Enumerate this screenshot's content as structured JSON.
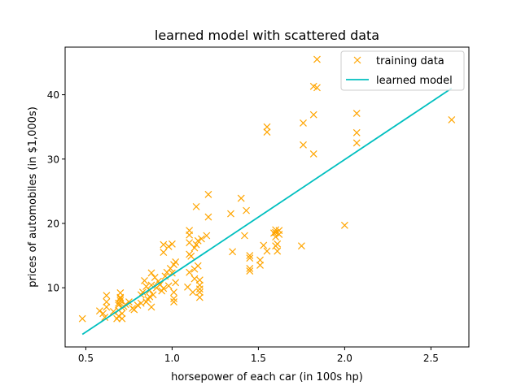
{
  "chart_data": {
    "type": "scatter",
    "title": "learned model with scattered data",
    "xlabel": "horsepower of each car (in 100s hp)",
    "ylabel": "prices of automobiles (in $1,000s)",
    "xlim": [
      0.38,
      2.72
    ],
    "ylim": [
      0.8,
      47.4
    ],
    "xticks": [
      0.5,
      1.0,
      1.5,
      2.0,
      2.5
    ],
    "xtick_labels": [
      "0.5",
      "1.0",
      "1.5",
      "2.0",
      "2.5"
    ],
    "yticks": [
      10,
      20,
      30,
      40
    ],
    "ytick_labels": [
      "10",
      "20",
      "30",
      "40"
    ],
    "grid": false,
    "legend_position": "top-right",
    "colors": {
      "training": "#ffa500",
      "model": "#00bfbf",
      "axes": "#000000"
    },
    "series": [
      {
        "name": "training data",
        "kind": "scatter",
        "marker": "x",
        "points": [
          [
            0.48,
            5.2
          ],
          [
            0.58,
            6.4
          ],
          [
            0.6,
            6.0
          ],
          [
            0.61,
            5.4
          ],
          [
            0.62,
            7.0
          ],
          [
            0.62,
            7.8
          ],
          [
            0.62,
            8.8
          ],
          [
            0.66,
            6.3
          ],
          [
            0.68,
            5.2
          ],
          [
            0.69,
            5.6
          ],
          [
            0.69,
            6.5
          ],
          [
            0.69,
            7.3
          ],
          [
            0.69,
            7.6
          ],
          [
            0.7,
            8.0
          ],
          [
            0.7,
            8.3
          ],
          [
            0.7,
            8.5
          ],
          [
            0.7,
            9.2
          ],
          [
            0.71,
            5.2
          ],
          [
            0.71,
            6.0
          ],
          [
            0.71,
            6.9
          ],
          [
            0.72,
            7.1
          ],
          [
            0.73,
            7.4
          ],
          [
            0.75,
            7.8
          ],
          [
            0.77,
            6.8
          ],
          [
            0.78,
            6.6
          ],
          [
            0.8,
            7.3
          ],
          [
            0.82,
            7.6
          ],
          [
            0.82,
            8.9
          ],
          [
            0.83,
            9.3
          ],
          [
            0.84,
            11.1
          ],
          [
            0.85,
            7.8
          ],
          [
            0.85,
            10.2
          ],
          [
            0.86,
            8.2
          ],
          [
            0.87,
            8.6
          ],
          [
            0.87,
            9.6
          ],
          [
            0.88,
            7.0
          ],
          [
            0.88,
            10.4
          ],
          [
            0.88,
            12.3
          ],
          [
            0.89,
            8.9
          ],
          [
            0.9,
            11.6
          ],
          [
            0.91,
            10.0
          ],
          [
            0.92,
            11.0
          ],
          [
            0.93,
            10.5
          ],
          [
            0.94,
            9.5
          ],
          [
            0.95,
            9.9
          ],
          [
            0.95,
            15.5
          ],
          [
            0.95,
            16.7
          ],
          [
            0.96,
            11.8
          ],
          [
            0.97,
            12.4
          ],
          [
            0.98,
            10.3
          ],
          [
            0.98,
            16.4
          ],
          [
            0.99,
            13.0
          ],
          [
            1.0,
            12.3
          ],
          [
            1.0,
            16.8
          ],
          [
            1.01,
            7.8
          ],
          [
            1.01,
            8.3
          ],
          [
            1.01,
            9.3
          ],
          [
            1.01,
            13.6
          ],
          [
            1.02,
            10.8
          ],
          [
            1.02,
            14.0
          ],
          [
            1.09,
            10.1
          ],
          [
            1.1,
            12.4
          ],
          [
            1.1,
            15.2
          ],
          [
            1.1,
            17.0
          ],
          [
            1.1,
            18.2
          ],
          [
            1.1,
            18.9
          ],
          [
            1.11,
            14.9
          ],
          [
            1.12,
            9.3
          ],
          [
            1.13,
            11.4
          ],
          [
            1.13,
            12.9
          ],
          [
            1.13,
            16.2
          ],
          [
            1.14,
            16.7
          ],
          [
            1.14,
            22.6
          ],
          [
            1.15,
            13.4
          ],
          [
            1.15,
            17.3
          ],
          [
            1.16,
            8.5
          ],
          [
            1.16,
            9.3
          ],
          [
            1.16,
            9.8
          ],
          [
            1.16,
            10.4
          ],
          [
            1.16,
            11.2
          ],
          [
            1.17,
            17.6
          ],
          [
            1.2,
            18.1
          ],
          [
            1.21,
            21.0
          ],
          [
            1.21,
            24.5
          ],
          [
            1.34,
            21.5
          ],
          [
            1.35,
            15.6
          ],
          [
            1.4,
            23.9
          ],
          [
            1.42,
            18.1
          ],
          [
            1.43,
            22.0
          ],
          [
            1.45,
            12.6
          ],
          [
            1.45,
            13.0
          ],
          [
            1.45,
            14.6
          ],
          [
            1.45,
            15.0
          ],
          [
            1.51,
            13.5
          ],
          [
            1.51,
            14.3
          ],
          [
            1.53,
            16.6
          ],
          [
            1.55,
            15.7
          ],
          [
            1.55,
            34.2
          ],
          [
            1.55,
            35.0
          ],
          [
            1.59,
            18.5
          ],
          [
            1.6,
            16.5
          ],
          [
            1.6,
            17.9
          ],
          [
            1.6,
            18.6
          ],
          [
            1.6,
            19.0
          ],
          [
            1.61,
            15.7
          ],
          [
            1.61,
            16.8
          ],
          [
            1.62,
            18.3
          ],
          [
            1.62,
            18.9
          ],
          [
            1.75,
            16.5
          ],
          [
            1.76,
            32.2
          ],
          [
            1.76,
            35.6
          ],
          [
            1.82,
            30.8
          ],
          [
            1.82,
            36.9
          ],
          [
            1.82,
            41.3
          ],
          [
            1.84,
            41.1
          ],
          [
            1.84,
            45.5
          ],
          [
            2.0,
            19.7
          ],
          [
            2.07,
            32.5
          ],
          [
            2.07,
            34.1
          ],
          [
            2.07,
            37.1
          ],
          [
            2.62,
            36.1
          ]
        ]
      },
      {
        "name": "learned model",
        "kind": "line",
        "x": [
          0.48,
          2.62
        ],
        "y": [
          2.75,
          41.0
        ]
      }
    ]
  }
}
